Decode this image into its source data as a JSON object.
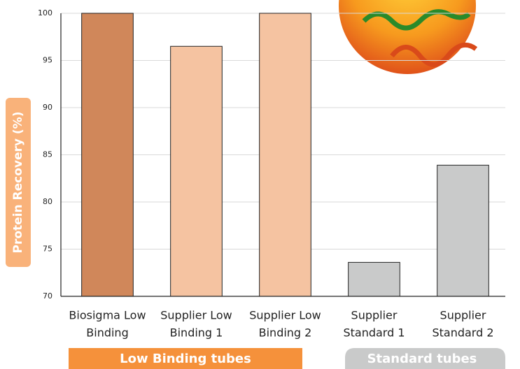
{
  "chart_data": {
    "type": "bar",
    "y_label": "Protein Recovery (%)",
    "categories": [
      [
        "Biosigma Low",
        "Binding"
      ],
      [
        "Supplier Low",
        "Binding 1"
      ],
      [
        "Supplier Low",
        "Binding 2"
      ],
      [
        "Supplier",
        "Standard 1"
      ],
      [
        "Supplier",
        "Standard 2"
      ]
    ],
    "values": [
      100,
      96.5,
      100,
      73.6,
      83.9
    ],
    "colors": [
      "#d0875a",
      "#f5c3a1",
      "#f5c3a1",
      "#c9caca",
      "#c9caca"
    ],
    "ylim": [
      70,
      100
    ],
    "yticks": [
      70,
      75,
      80,
      85,
      90,
      95,
      100
    ],
    "grid": true,
    "groups": [
      {
        "label": "Low Binding tubes",
        "color": "#f5913b"
      },
      {
        "label": "Standard tubes",
        "color": "#c9caca"
      }
    ]
  }
}
